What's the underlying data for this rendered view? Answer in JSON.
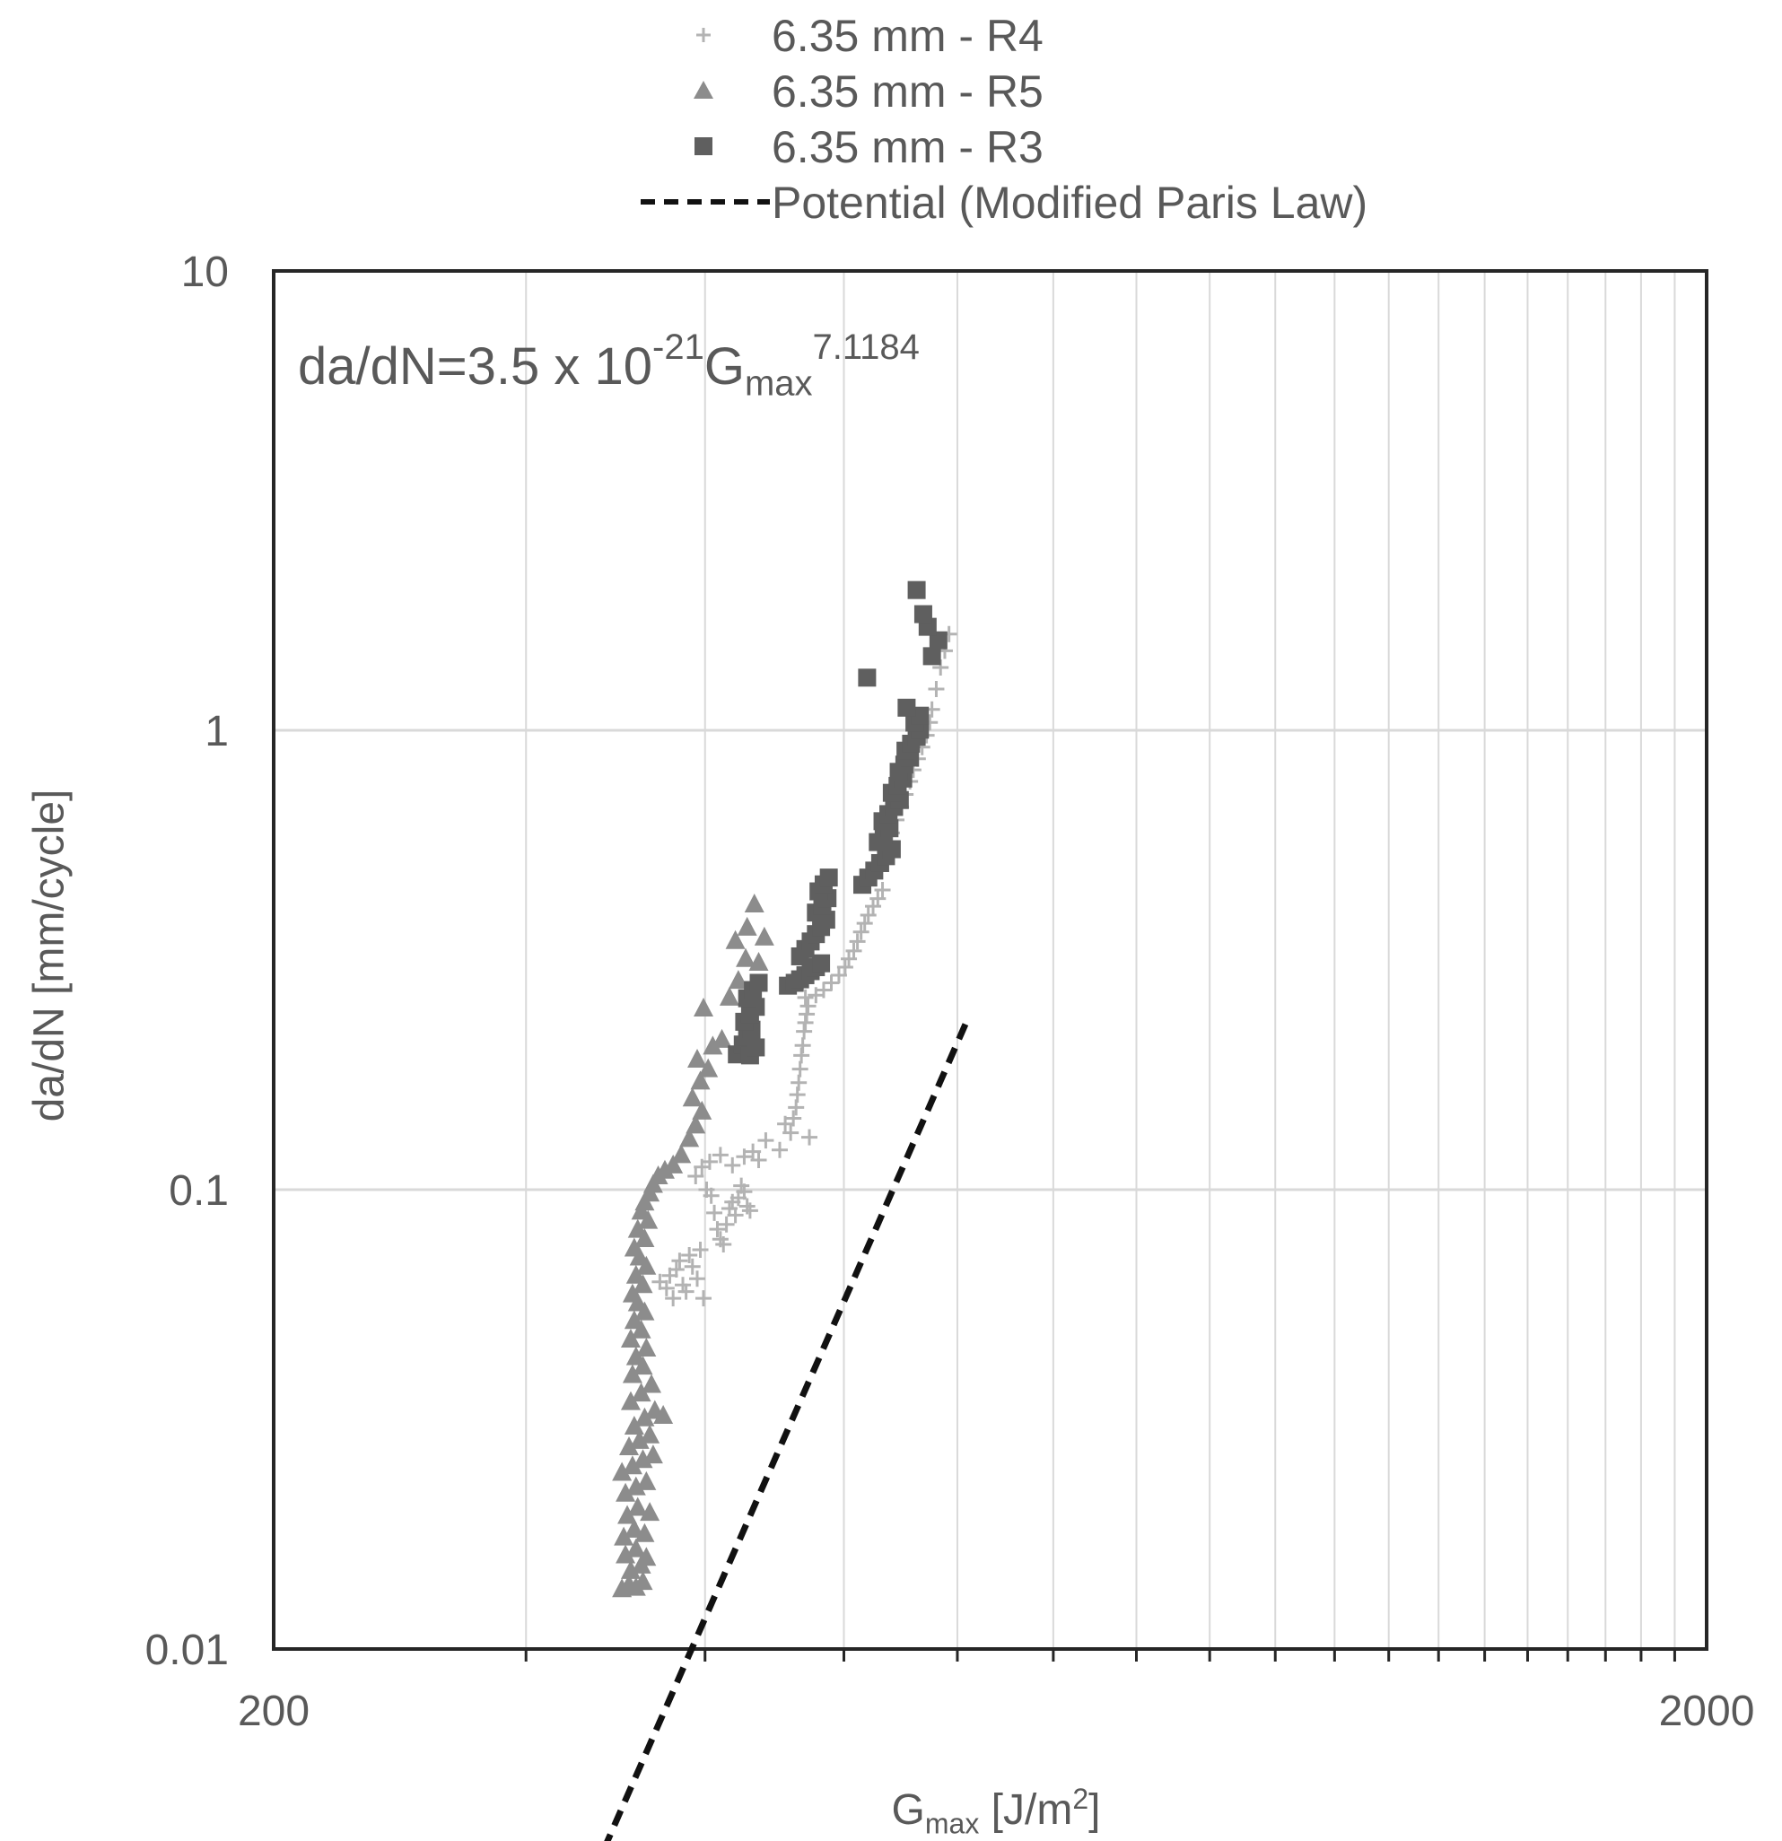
{
  "chart_data": {
    "type": "scatter",
    "xscale": "log",
    "yscale": "log",
    "xlim": [
      200,
      2000
    ],
    "ylim": [
      0.01,
      10
    ],
    "xticks": [
      "200",
      "2000"
    ],
    "yticks": [
      "0.01",
      "0.1",
      "1",
      "10"
    ],
    "xlabel": {
      "main": "G",
      "sub": "max",
      "unit": " [J/m",
      "sup": "2",
      "close": "]"
    },
    "ylabel": "da/dN [mm/cycle]",
    "grid": "vertical and horizontal, log minor vertical",
    "legend_position": "top, above plot",
    "equation": {
      "prefix": "da/dN=3.5 x 10",
      "exp": "-21",
      "var": "G",
      "var_sub": "max",
      "power": "7.1184"
    },
    "series": [
      {
        "name": "6.35 mm - R4",
        "marker": "plus",
        "color": "#b3b3b3",
        "points": [
          [
            372,
            0.063
          ],
          [
            376,
            0.061
          ],
          [
            378,
            0.065
          ],
          [
            380,
            0.058
          ],
          [
            382,
            0.067
          ],
          [
            384,
            0.07
          ],
          [
            386,
            0.062
          ],
          [
            388,
            0.06
          ],
          [
            390,
            0.072
          ],
          [
            392,
            0.068
          ],
          [
            395,
            0.064
          ],
          [
            397,
            0.074
          ],
          [
            399,
            0.058
          ],
          [
            394,
            0.107
          ],
          [
            398,
            0.112
          ],
          [
            401,
            0.1
          ],
          [
            404,
            0.097
          ],
          [
            406,
            0.089
          ],
          [
            408,
            0.082
          ],
          [
            410,
            0.078
          ],
          [
            412,
            0.076
          ],
          [
            414,
            0.084
          ],
          [
            416,
            0.091
          ],
          [
            418,
            0.094
          ],
          [
            420,
            0.088
          ],
          [
            422,
            0.096
          ],
          [
            424,
            0.102
          ],
          [
            426,
            0.099
          ],
          [
            428,
            0.092
          ],
          [
            430,
            0.09
          ],
          [
            403,
            0.115
          ],
          [
            410,
            0.119
          ],
          [
            418,
            0.113
          ],
          [
            426,
            0.118
          ],
          [
            432,
            0.121
          ],
          [
            436,
            0.116
          ],
          [
            441,
            0.128
          ],
          [
            451,
            0.122
          ],
          [
            455,
            0.139
          ],
          [
            459,
            0.133
          ],
          [
            461,
            0.143
          ],
          [
            463,
            0.151
          ],
          [
            464,
            0.161
          ],
          [
            465,
            0.171
          ],
          [
            466,
            0.183
          ],
          [
            467,
            0.196
          ],
          [
            468,
            0.206
          ],
          [
            469,
            0.221
          ],
          [
            470,
            0.231
          ],
          [
            471,
            0.241
          ],
          [
            472,
            0.251
          ],
          [
            470,
            0.262
          ],
          [
            473,
            0.13
          ],
          [
            478,
            0.265
          ],
          [
            484,
            0.272
          ],
          [
            490,
            0.282
          ],
          [
            496,
            0.293
          ],
          [
            501,
            0.305
          ],
          [
            504,
            0.318
          ],
          [
            508,
            0.331
          ],
          [
            511,
            0.347
          ],
          [
            514,
            0.364
          ],
          [
            517,
            0.38
          ],
          [
            520,
            0.396
          ],
          [
            524,
            0.414
          ],
          [
            528,
            0.43
          ],
          [
            532,
            0.449
          ],
          [
            533,
            0.525
          ],
          [
            536,
            0.56
          ],
          [
            540,
            0.598
          ],
          [
            544,
            0.638
          ],
          [
            548,
            0.68
          ],
          [
            552,
            0.725
          ],
          [
            556,
            0.774
          ],
          [
            559,
            0.82
          ],
          [
            563,
            0.867
          ],
          [
            567,
            0.919
          ],
          [
            571,
            0.975
          ],
          [
            574,
            1.04
          ],
          [
            576,
            1.11
          ],
          [
            580,
            1.23
          ],
          [
            584,
            1.37
          ],
          [
            588,
            1.49
          ],
          [
            592,
            1.62
          ]
        ]
      },
      {
        "name": "6.35 mm - R5",
        "marker": "triangle",
        "color": "#8c8c8c",
        "points": [
          [
            350,
            0.0135
          ],
          [
            354,
            0.0138
          ],
          [
            358,
            0.0136
          ],
          [
            362,
            0.014
          ],
          [
            355,
            0.0148
          ],
          [
            361,
            0.0152
          ],
          [
            352,
            0.016
          ],
          [
            358,
            0.0165
          ],
          [
            364,
            0.0158
          ],
          [
            351,
            0.0175
          ],
          [
            357,
            0.0182
          ],
          [
            363,
            0.0178
          ],
          [
            353,
            0.0195
          ],
          [
            359,
            0.0203
          ],
          [
            366,
            0.0198
          ],
          [
            352,
            0.0218
          ],
          [
            358,
            0.0225
          ],
          [
            364,
            0.0231
          ],
          [
            350,
            0.0242
          ],
          [
            356,
            0.025
          ],
          [
            362,
            0.0258
          ],
          [
            368,
            0.0264
          ],
          [
            354,
            0.0275
          ],
          [
            360,
            0.0284
          ],
          [
            366,
            0.0292
          ],
          [
            357,
            0.0305
          ],
          [
            363,
            0.0318
          ],
          [
            369,
            0.033
          ],
          [
            374,
            0.0322
          ],
          [
            355,
            0.0345
          ],
          [
            361,
            0.036
          ],
          [
            367,
            0.0376
          ],
          [
            356,
            0.0395
          ],
          [
            362,
            0.0412
          ],
          [
            358,
            0.0432
          ],
          [
            364,
            0.0451
          ],
          [
            355,
            0.0472
          ],
          [
            361,
            0.0494
          ],
          [
            357,
            0.0518
          ],
          [
            363,
            0.0541
          ],
          [
            359,
            0.0566
          ],
          [
            356,
            0.0592
          ],
          [
            362,
            0.062
          ],
          [
            358,
            0.065
          ],
          [
            364,
            0.068
          ],
          [
            360,
            0.0712
          ],
          [
            357,
            0.0745
          ],
          [
            363,
            0.0781
          ],
          [
            359,
            0.0818
          ],
          [
            365,
            0.0856
          ],
          [
            361,
            0.0896
          ],
          [
            363,
            0.0938
          ],
          [
            366,
            0.0981
          ],
          [
            368,
            0.1025
          ],
          [
            371,
            0.107
          ],
          [
            375,
            0.11
          ],
          [
            380,
            0.113
          ],
          [
            385,
            0.119
          ],
          [
            390,
            0.129
          ],
          [
            394,
            0.138
          ],
          [
            398,
            0.148
          ],
          [
            392,
            0.158
          ],
          [
            397,
            0.172
          ],
          [
            402,
            0.183
          ],
          [
            395,
            0.192
          ],
          [
            405,
            0.205
          ],
          [
            411,
            0.212
          ],
          [
            399,
            0.248
          ],
          [
            416,
            0.262
          ],
          [
            422,
            0.285
          ],
          [
            427,
            0.318
          ],
          [
            420,
            0.348
          ],
          [
            428,
            0.372
          ],
          [
            433,
            0.418
          ],
          [
            436,
            0.312
          ],
          [
            440,
            0.354
          ]
        ]
      },
      {
        "name": "6.35 mm - R3",
        "marker": "square",
        "color": "#5f5f5f",
        "points": [
          [
            421,
            0.197
          ],
          [
            425,
            0.207
          ],
          [
            428,
            0.215
          ],
          [
            431,
            0.223
          ],
          [
            426,
            0.232
          ],
          [
            430,
            0.241
          ],
          [
            434,
            0.25
          ],
          [
            428,
            0.261
          ],
          [
            432,
            0.272
          ],
          [
            436,
            0.282
          ],
          [
            430,
            0.196
          ],
          [
            434,
            0.204
          ],
          [
            457,
            0.278
          ],
          [
            462,
            0.282
          ],
          [
            466,
            0.287
          ],
          [
            470,
            0.293
          ],
          [
            474,
            0.299
          ],
          [
            478,
            0.305
          ],
          [
            482,
            0.311
          ],
          [
            466,
            0.322
          ],
          [
            470,
            0.334
          ],
          [
            474,
            0.347
          ],
          [
            478,
            0.36
          ],
          [
            482,
            0.373
          ],
          [
            486,
            0.387
          ],
          [
            478,
            0.401
          ],
          [
            483,
            0.415
          ],
          [
            487,
            0.431
          ],
          [
            480,
            0.446
          ],
          [
            484,
            0.462
          ],
          [
            488,
            0.478
          ],
          [
            515,
            0.461
          ],
          [
            520,
            0.478
          ],
          [
            525,
            0.495
          ],
          [
            530,
            0.514
          ],
          [
            535,
            0.532
          ],
          [
            540,
            0.551
          ],
          [
            528,
            0.571
          ],
          [
            533,
            0.591
          ],
          [
            538,
            0.612
          ],
          [
            532,
            0.634
          ],
          [
            537,
            0.657
          ],
          [
            542,
            0.681
          ],
          [
            547,
            0.705
          ],
          [
            540,
            0.731
          ],
          [
            545,
            0.757
          ],
          [
            550,
            0.785
          ],
          [
            546,
            0.812
          ],
          [
            551,
            0.842
          ],
          [
            556,
            0.872
          ],
          [
            552,
            0.903
          ],
          [
            557,
            0.935
          ],
          [
            562,
            0.968
          ],
          [
            565,
            1.003
          ],
          [
            560,
            1.039
          ],
          [
            565,
            1.076
          ],
          [
            553,
            1.12
          ],
          [
            519,
            1.302
          ],
          [
            576,
            1.45
          ],
          [
            582,
            1.57
          ],
          [
            572,
            1.68
          ],
          [
            568,
            1.79
          ],
          [
            562,
            2.02
          ]
        ]
      },
      {
        "name": "Potential (Modified Paris Law)",
        "type": "power-fit",
        "style": "dashed",
        "color": "#111111",
        "coef": 3.5e-21,
        "exponent": 7.1184,
        "x": [
          340,
          610
        ]
      }
    ]
  }
}
